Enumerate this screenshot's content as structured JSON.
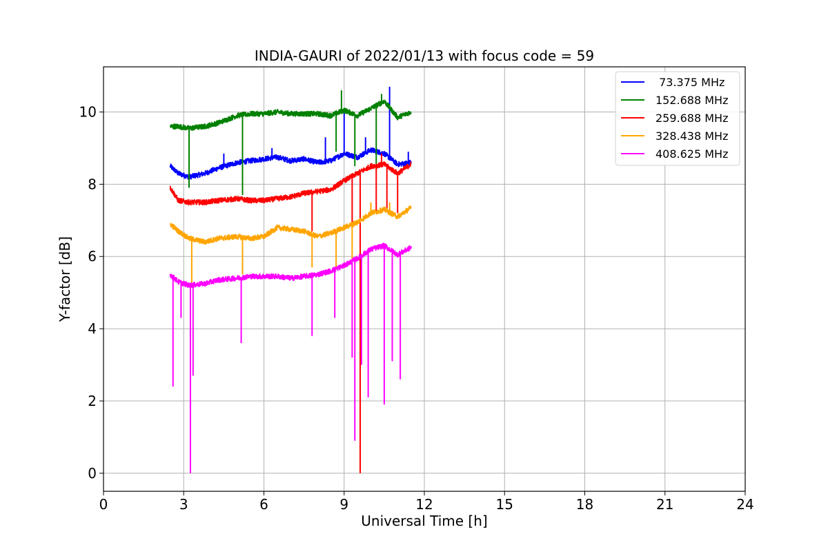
{
  "chart_data": {
    "type": "line",
    "title": "INDIA-GAURI of 2022/01/13 with focus code = 59",
    "xlabel": "Universal Time [h]",
    "ylabel": "Y-factor [dB]",
    "xlim": [
      0,
      24
    ],
    "ylim": [
      -0.5,
      11.25
    ],
    "xticks": [
      0,
      3,
      6,
      9,
      12,
      15,
      18,
      21,
      24
    ],
    "yticks": [
      0,
      2,
      4,
      6,
      8,
      10
    ],
    "grid": true,
    "legend_position": "top-right",
    "series": [
      {
        "name": " 73.375 MHz",
        "color": "#0000ff",
        "points": [
          [
            2.5,
            8.5
          ],
          [
            2.8,
            8.3
          ],
          [
            3.2,
            8.2
          ],
          [
            3.8,
            8.3
          ],
          [
            4.3,
            8.45
          ],
          [
            5.0,
            8.6
          ],
          [
            5.5,
            8.65
          ],
          [
            6.0,
            8.7
          ],
          [
            6.5,
            8.75
          ],
          [
            7.0,
            8.65
          ],
          [
            7.5,
            8.7
          ],
          [
            8.0,
            8.6
          ],
          [
            8.5,
            8.65
          ],
          [
            9.0,
            8.85
          ],
          [
            9.5,
            8.75
          ],
          [
            10.0,
            8.95
          ],
          [
            10.5,
            8.85
          ],
          [
            11.0,
            8.55
          ],
          [
            11.5,
            8.6
          ]
        ],
        "spikes": [
          [
            4.5,
            8.85
          ],
          [
            6.3,
            9.0
          ],
          [
            8.3,
            9.3
          ],
          [
            9.0,
            10.0
          ],
          [
            9.8,
            9.3
          ],
          [
            10.7,
            10.7
          ],
          [
            11.4,
            8.9
          ]
        ]
      },
      {
        "name": "152.688 MHz",
        "color": "#008000",
        "points": [
          [
            2.5,
            9.6
          ],
          [
            2.8,
            9.6
          ],
          [
            3.2,
            9.55
          ],
          [
            3.8,
            9.6
          ],
          [
            4.3,
            9.7
          ],
          [
            5.0,
            9.9
          ],
          [
            5.5,
            9.95
          ],
          [
            6.0,
            9.95
          ],
          [
            6.5,
            10.0
          ],
          [
            7.0,
            9.95
          ],
          [
            7.5,
            9.95
          ],
          [
            8.0,
            9.95
          ],
          [
            8.5,
            9.9
          ],
          [
            9.0,
            10.05
          ],
          [
            9.5,
            9.9
          ],
          [
            10.0,
            10.1
          ],
          [
            10.5,
            10.3
          ],
          [
            11.0,
            9.85
          ],
          [
            11.5,
            10.0
          ]
        ],
        "spikes": [
          [
            8.9,
            10.6
          ],
          [
            10.4,
            10.5
          ],
          [
            5.2,
            7.7
          ],
          [
            3.2,
            7.9
          ],
          [
            9.4,
            8.5
          ],
          [
            10.2,
            8.4
          ],
          [
            8.7,
            8.9
          ]
        ]
      },
      {
        "name": "259.688 MHz",
        "color": "#ff0000",
        "points": [
          [
            2.5,
            7.9
          ],
          [
            2.8,
            7.55
          ],
          [
            3.2,
            7.5
          ],
          [
            3.8,
            7.5
          ],
          [
            4.3,
            7.55
          ],
          [
            5.0,
            7.6
          ],
          [
            5.5,
            7.55
          ],
          [
            6.0,
            7.55
          ],
          [
            6.5,
            7.6
          ],
          [
            7.0,
            7.65
          ],
          [
            7.5,
            7.75
          ],
          [
            8.0,
            7.8
          ],
          [
            8.5,
            7.85
          ],
          [
            9.0,
            8.1
          ],
          [
            9.5,
            8.3
          ],
          [
            10.0,
            8.5
          ],
          [
            10.5,
            8.55
          ],
          [
            11.0,
            8.3
          ],
          [
            11.5,
            8.55
          ]
        ],
        "spikes": [
          [
            9.6,
            0.0
          ],
          [
            7.8,
            6.7
          ],
          [
            9.3,
            6.8
          ],
          [
            10.2,
            7.2
          ],
          [
            10.6,
            7.3
          ],
          [
            11.0,
            7.2
          ],
          [
            10.4,
            8.85
          ]
        ]
      },
      {
        "name": "328.438 MHz",
        "color": "#ffa500",
        "points": [
          [
            2.5,
            6.9
          ],
          [
            2.8,
            6.7
          ],
          [
            3.2,
            6.5
          ],
          [
            3.8,
            6.4
          ],
          [
            4.3,
            6.5
          ],
          [
            5.0,
            6.55
          ],
          [
            5.5,
            6.5
          ],
          [
            6.0,
            6.55
          ],
          [
            6.5,
            6.8
          ],
          [
            7.0,
            6.75
          ],
          [
            7.5,
            6.7
          ],
          [
            8.0,
            6.55
          ],
          [
            8.5,
            6.65
          ],
          [
            9.0,
            6.8
          ],
          [
            9.5,
            6.95
          ],
          [
            10.0,
            7.2
          ],
          [
            10.5,
            7.3
          ],
          [
            11.0,
            7.1
          ],
          [
            11.5,
            7.35
          ]
        ],
        "spikes": [
          [
            3.3,
            5.2
          ],
          [
            5.2,
            5.5
          ],
          [
            7.8,
            5.7
          ],
          [
            8.7,
            5.7
          ],
          [
            9.3,
            5.8
          ],
          [
            10.0,
            7.5
          ],
          [
            10.7,
            7.5
          ]
        ]
      },
      {
        "name": "408.625 MHz",
        "color": "#ff00ff",
        "points": [
          [
            2.5,
            5.5
          ],
          [
            2.8,
            5.3
          ],
          [
            3.2,
            5.2
          ],
          [
            3.8,
            5.25
          ],
          [
            4.3,
            5.35
          ],
          [
            5.0,
            5.4
          ],
          [
            5.5,
            5.45
          ],
          [
            6.0,
            5.45
          ],
          [
            6.5,
            5.45
          ],
          [
            7.0,
            5.4
          ],
          [
            7.5,
            5.45
          ],
          [
            8.0,
            5.5
          ],
          [
            8.5,
            5.6
          ],
          [
            9.0,
            5.75
          ],
          [
            9.5,
            5.95
          ],
          [
            10.0,
            6.2
          ],
          [
            10.5,
            6.3
          ],
          [
            11.0,
            6.05
          ],
          [
            11.5,
            6.25
          ]
        ],
        "spikes": [
          [
            2.6,
            2.4
          ],
          [
            2.9,
            4.3
          ],
          [
            3.25,
            0.0
          ],
          [
            3.35,
            2.7
          ],
          [
            5.15,
            3.6
          ],
          [
            7.8,
            3.8
          ],
          [
            8.65,
            4.3
          ],
          [
            9.3,
            3.2
          ],
          [
            9.4,
            0.9
          ],
          [
            9.65,
            3.0
          ],
          [
            9.9,
            2.1
          ],
          [
            10.5,
            1.9
          ],
          [
            10.8,
            3.1
          ],
          [
            11.1,
            2.6
          ]
        ]
      }
    ]
  }
}
